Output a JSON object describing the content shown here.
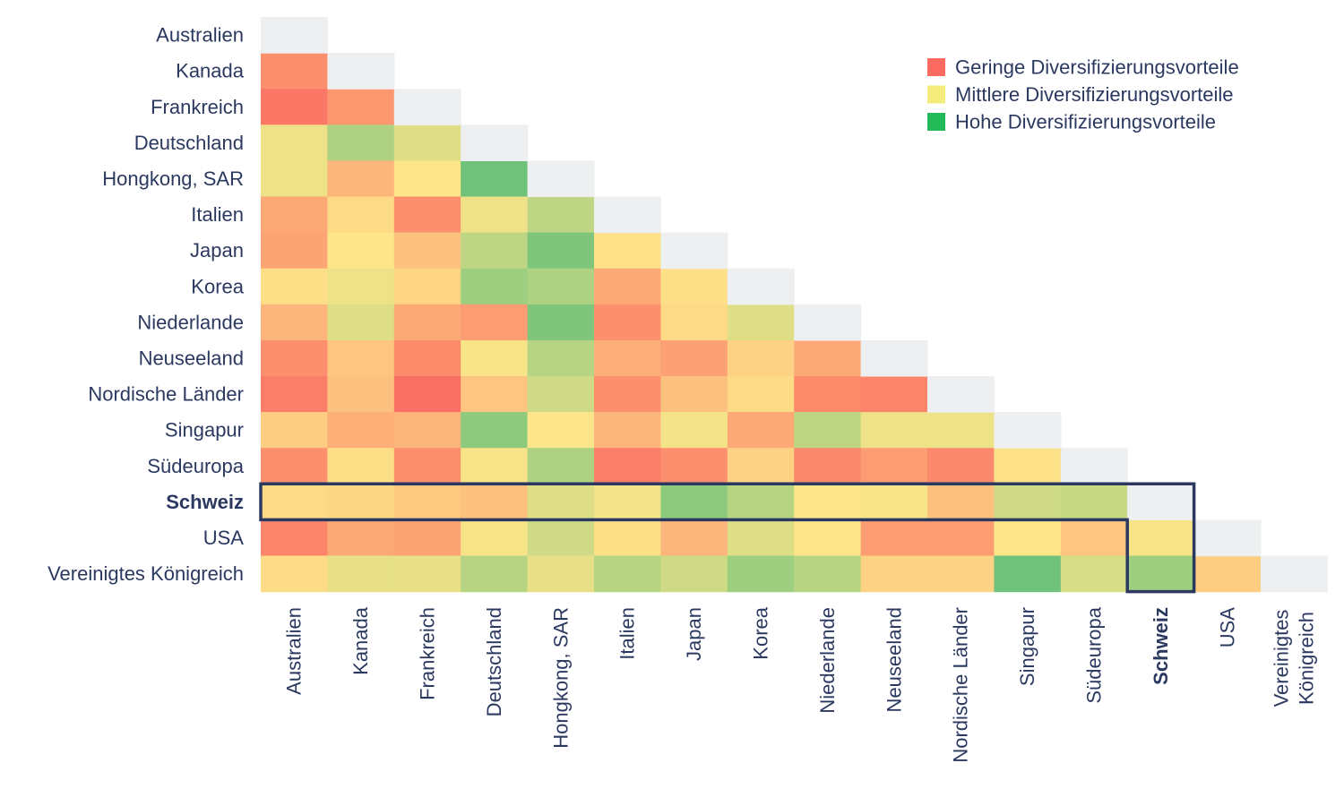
{
  "chart_data": {
    "type": "heatmap",
    "title": "",
    "countries": [
      "Australien",
      "Kanada",
      "Frankreich",
      "Deutschland",
      "Hongkong, SAR",
      "Italien",
      "Japan",
      "Korea",
      "Niederlande",
      "Neuseeland",
      "Nordische Länder",
      "Singapur",
      "Südeuropa",
      "Schweiz",
      "USA",
      "Vereinigtes Königreich"
    ],
    "x_tick_lines": [
      [
        "Australien"
      ],
      [
        "Kanada"
      ],
      [
        "Frankreich"
      ],
      [
        "Deutschland"
      ],
      [
        "Hongkong, SAR"
      ],
      [
        "Italien"
      ],
      [
        "Japan"
      ],
      [
        "Korea"
      ],
      [
        "Niederlande"
      ],
      [
        "Neuseeland"
      ],
      [
        "Nordische Länder"
      ],
      [
        "Singapur"
      ],
      [
        "Südeuropa"
      ],
      [
        "Schweiz"
      ],
      [
        "USA"
      ],
      [
        "Vereinigtes",
        "Königreich"
      ]
    ],
    "highlight": "Schweiz",
    "value_scale": "0 = geringe, 1 = hohe Diversifizierungsvorteile",
    "matrix_lower": [
      [],
      [
        0.15
      ],
      [
        0.05,
        0.18
      ],
      [
        0.55,
        0.75,
        0.6
      ],
      [
        0.55,
        0.3,
        0.5,
        0.95
      ],
      [
        0.25,
        0.45,
        0.15,
        0.55,
        0.7
      ],
      [
        0.23,
        0.5,
        0.35,
        0.7,
        0.9,
        0.48
      ],
      [
        0.47,
        0.55,
        0.43,
        0.8,
        0.75,
        0.25,
        0.47
      ],
      [
        0.3,
        0.6,
        0.25,
        0.2,
        0.9,
        0.15,
        0.45,
        0.6
      ],
      [
        0.15,
        0.37,
        0.13,
        0.52,
        0.72,
        0.27,
        0.22,
        0.42,
        0.25
      ],
      [
        0.08,
        0.35,
        0.02,
        0.37,
        0.65,
        0.15,
        0.35,
        0.45,
        0.13,
        0.1
      ],
      [
        0.4,
        0.28,
        0.3,
        0.85,
        0.5,
        0.3,
        0.53,
        0.25,
        0.7,
        0.55,
        0.55
      ],
      [
        0.15,
        0.47,
        0.15,
        0.52,
        0.75,
        0.08,
        0.15,
        0.42,
        0.12,
        0.2,
        0.12,
        0.48
      ],
      [
        0.45,
        0.44,
        0.38,
        0.35,
        0.6,
        0.53,
        0.85,
        0.72,
        0.5,
        0.52,
        0.35,
        0.65,
        0.67
      ],
      [
        0.1,
        0.25,
        0.23,
        0.52,
        0.65,
        0.47,
        0.3,
        0.6,
        0.5,
        0.2,
        0.2,
        0.5,
        0.37,
        0.52
      ],
      [
        0.46,
        0.57,
        0.57,
        0.72,
        0.57,
        0.72,
        0.65,
        0.8,
        0.72,
        0.42,
        0.42,
        0.95,
        0.62,
        0.8,
        0.4
      ]
    ],
    "legend": [
      {
        "label": "Geringe Diversifizierungsvorteile",
        "color": "#fb6b62"
      },
      {
        "label": "Mittlere Diversifizierungsvorteile",
        "color": "#f3ec7a"
      },
      {
        "label": "Hohe Diversifizierungsvorteile",
        "color": "#23ba59"
      }
    ],
    "legend_position": "top-right",
    "colors": {
      "low": "#fb6b62",
      "mid": "#fde68a",
      "high": "#5fbe78",
      "diagonal": "#eeeff1",
      "highlight_outline": "#2b3960",
      "text": "#2b3960"
    }
  }
}
